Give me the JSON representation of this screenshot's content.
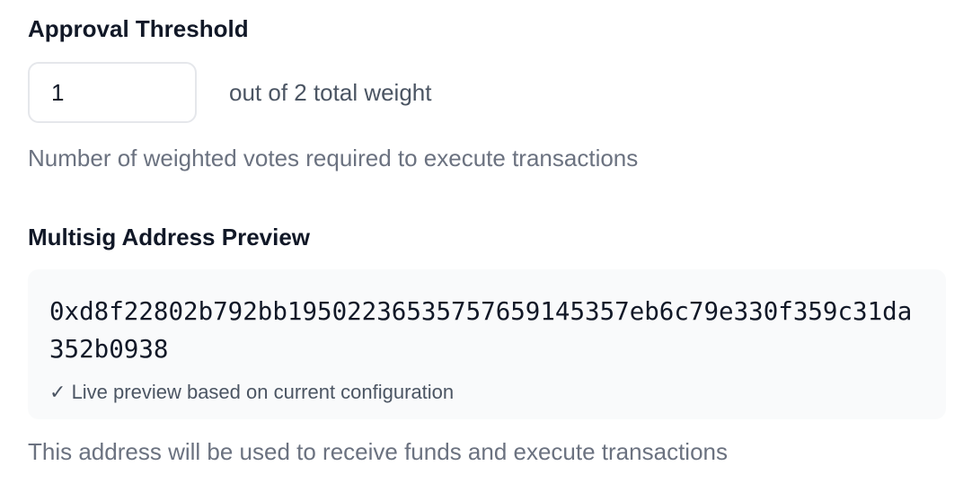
{
  "threshold": {
    "label": "Approval Threshold",
    "value": "1",
    "suffix": "out of 2 total weight",
    "help": "Number of weighted votes required to execute transactions"
  },
  "preview": {
    "label": "Multisig Address Preview",
    "address": "0xd8f22802b792bb19502236535757659145357eb6c79e330f359c31da352b0938",
    "check_icon": "✓",
    "note": "Live preview based on current configuration",
    "help": "This address will be used to receive funds and execute transactions"
  }
}
